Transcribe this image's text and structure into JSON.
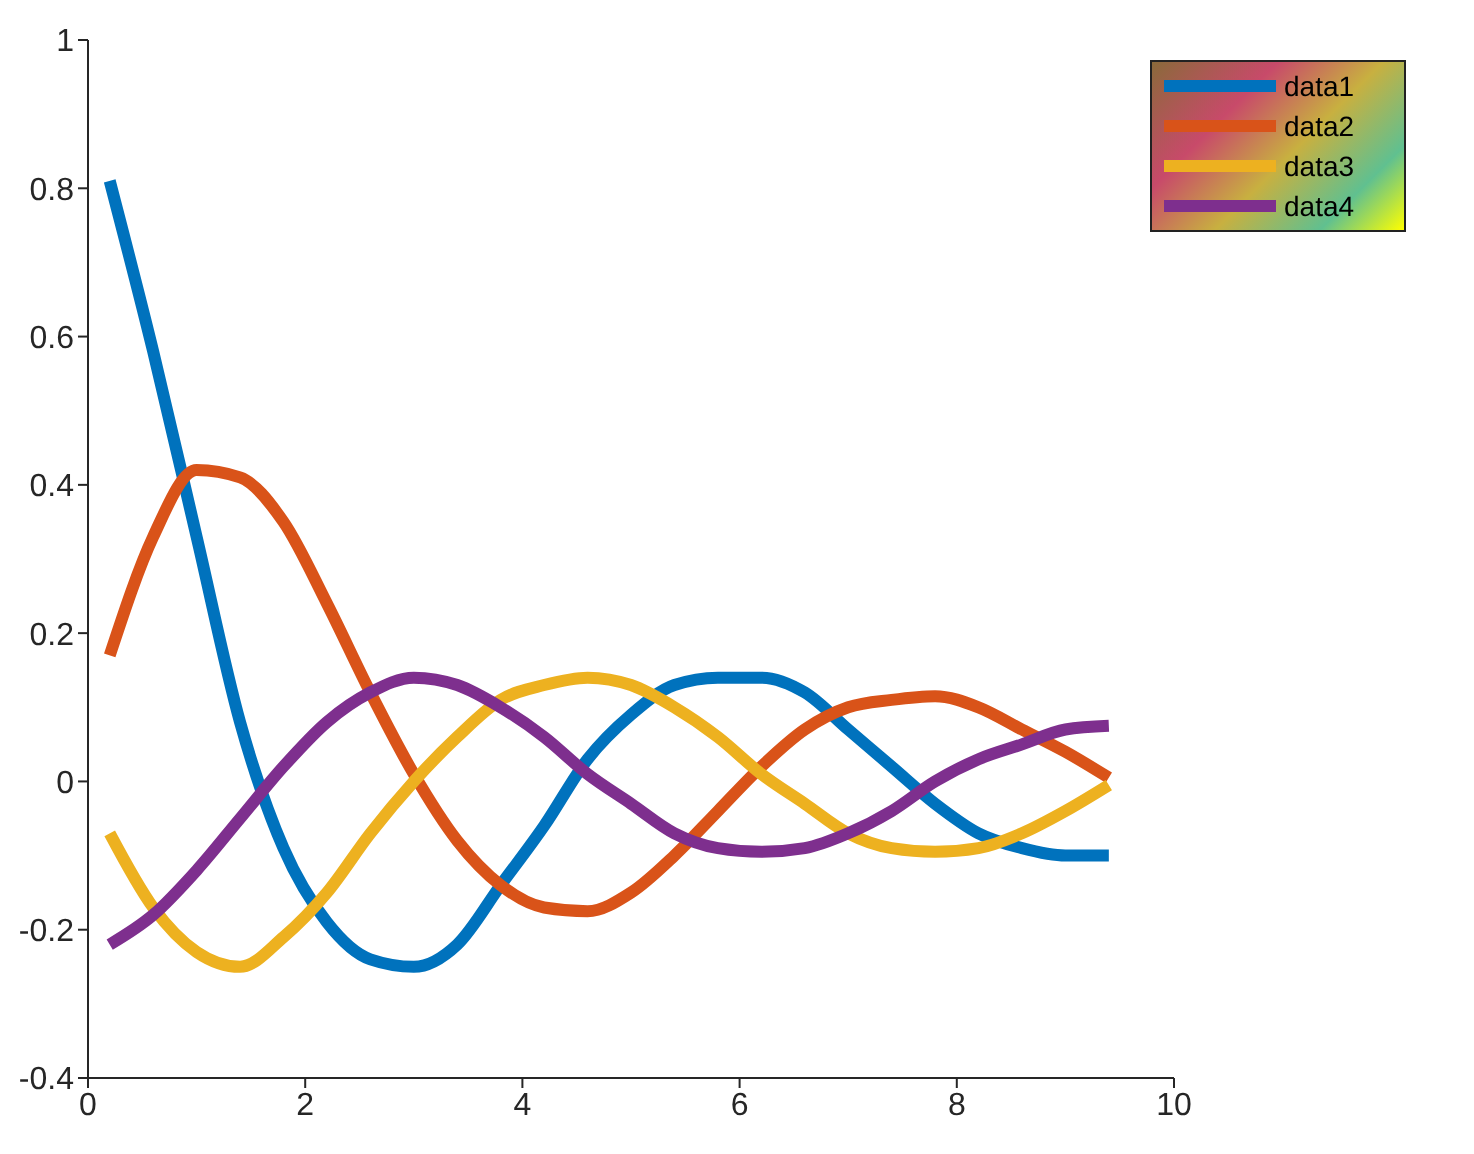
{
  "chart_data": {
    "type": "line",
    "x": [
      0.2,
      0.6,
      1.0,
      1.4,
      1.8,
      2.2,
      2.6,
      3.0,
      3.4,
      3.8,
      4.2,
      4.6,
      5.0,
      5.4,
      5.8,
      6.2,
      6.6,
      7.0,
      7.4,
      7.8,
      8.2,
      8.6,
      9.0,
      9.4
    ],
    "series": [
      {
        "name": "data1",
        "color": "#0072bd",
        "values": [
          0.81,
          0.58,
          0.33,
          0.08,
          -0.09,
          -0.19,
          -0.24,
          -0.25,
          -0.22,
          -0.14,
          -0.06,
          0.03,
          0.09,
          0.13,
          0.14,
          0.14,
          0.12,
          0.07,
          0.02,
          -0.03,
          -0.07,
          -0.09,
          -0.1,
          -0.1
        ]
      },
      {
        "name": "data2",
        "color": "#d95319",
        "values": [
          0.17,
          0.33,
          0.42,
          0.41,
          0.35,
          0.24,
          0.12,
          0.01,
          -0.08,
          -0.14,
          -0.17,
          -0.175,
          -0.15,
          -0.1,
          -0.04,
          0.02,
          0.07,
          0.1,
          0.11,
          0.115,
          0.1,
          0.07,
          0.04,
          0.005
        ]
      },
      {
        "name": "data3",
        "color": "#edb120",
        "values": [
          -0.07,
          -0.17,
          -0.23,
          -0.25,
          -0.21,
          -0.15,
          -0.07,
          0.0,
          0.06,
          0.11,
          0.13,
          0.14,
          0.13,
          0.1,
          0.06,
          0.01,
          -0.03,
          -0.07,
          -0.09,
          -0.095,
          -0.09,
          -0.07,
          -0.04,
          -0.005
        ]
      },
      {
        "name": "data4",
        "color": "#7e2f8e",
        "values": [
          -0.22,
          -0.18,
          -0.12,
          -0.05,
          0.02,
          0.08,
          0.12,
          0.14,
          0.13,
          0.1,
          0.06,
          0.01,
          -0.03,
          -0.07,
          -0.09,
          -0.095,
          -0.09,
          -0.07,
          -0.04,
          0.0,
          0.03,
          0.05,
          0.07,
          0.075
        ]
      }
    ],
    "xlim": [
      0,
      10
    ],
    "xticks": [
      0,
      2,
      4,
      6,
      8,
      10
    ],
    "ylim": [
      -0.4,
      1
    ],
    "yticks": [
      -0.4,
      -0.2,
      0,
      0.2,
      0.4,
      0.6,
      0.8,
      1
    ],
    "grid": false,
    "legend": "top right",
    "marker": "none",
    "line_style": "solid"
  }
}
